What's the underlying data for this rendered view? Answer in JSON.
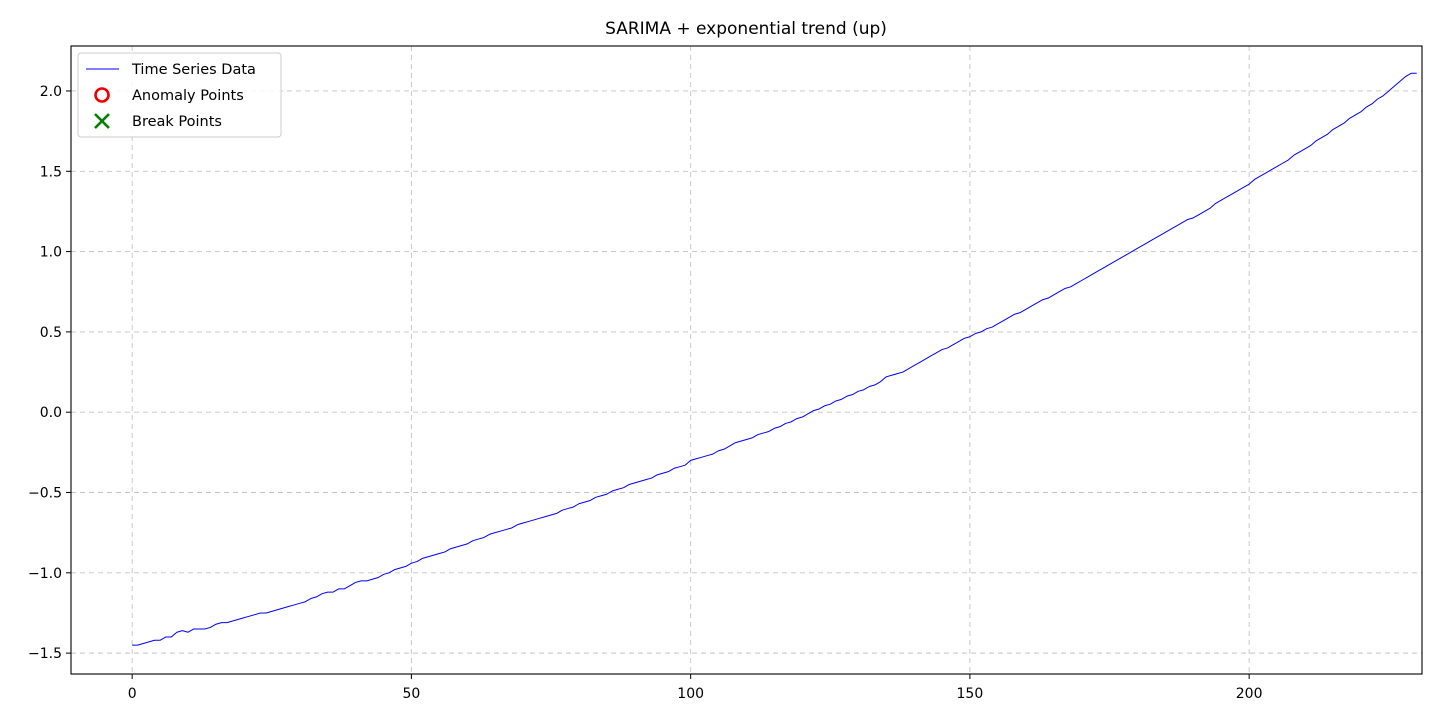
{
  "chart_data": {
    "type": "line",
    "title": "SARIMA + exponential trend (up)",
    "xlabel": "",
    "ylabel": "",
    "xlim": [
      -10.95,
      230.95
    ],
    "ylim": [
      -1.63,
      2.28
    ],
    "xticks": [
      0,
      50,
      100,
      150,
      200
    ],
    "xtick_labels": [
      "0",
      "50",
      "100",
      "150",
      "200"
    ],
    "yticks": [
      -1.5,
      -1.0,
      -0.5,
      0.0,
      0.5,
      1.0,
      1.5,
      2.0
    ],
    "ytick_labels": [
      "−1.5",
      "−1.0",
      "−0.5",
      "0.0",
      "0.5",
      "1.0",
      "1.5",
      "2.0"
    ],
    "grid": true,
    "legend_position": "top-left",
    "legend": [
      {
        "label": "Time Series Data",
        "marker": "line",
        "color": "#0000ff"
      },
      {
        "label": "Anomaly Points",
        "marker": "circle",
        "color": "#ee0000"
      },
      {
        "label": "Break Points",
        "marker": "x",
        "color": "#008000"
      }
    ],
    "series": [
      {
        "name": "Time Series Data",
        "color": "#0000ff",
        "x_start": 0,
        "x_step": 1,
        "values": [
          -1.45,
          -1.45,
          -1.44,
          -1.43,
          -1.42,
          -1.42,
          -1.4,
          -1.4,
          -1.37,
          -1.36,
          -1.37,
          -1.35,
          -1.35,
          -1.35,
          -1.34,
          -1.32,
          -1.31,
          -1.31,
          -1.3,
          -1.29,
          -1.28,
          -1.27,
          -1.26,
          -1.25,
          -1.25,
          -1.24,
          -1.23,
          -1.22,
          -1.21,
          -1.2,
          -1.19,
          -1.18,
          -1.16,
          -1.15,
          -1.13,
          -1.12,
          -1.12,
          -1.1,
          -1.1,
          -1.08,
          -1.06,
          -1.05,
          -1.05,
          -1.04,
          -1.03,
          -1.01,
          -1.0,
          -0.98,
          -0.97,
          -0.96,
          -0.94,
          -0.93,
          -0.91,
          -0.9,
          -0.89,
          -0.88,
          -0.87,
          -0.85,
          -0.84,
          -0.83,
          -0.82,
          -0.8,
          -0.79,
          -0.78,
          -0.76,
          -0.75,
          -0.74,
          -0.73,
          -0.72,
          -0.7,
          -0.69,
          -0.68,
          -0.67,
          -0.66,
          -0.65,
          -0.64,
          -0.63,
          -0.61,
          -0.6,
          -0.59,
          -0.57,
          -0.56,
          -0.55,
          -0.53,
          -0.52,
          -0.51,
          -0.49,
          -0.48,
          -0.47,
          -0.45,
          -0.44,
          -0.43,
          -0.42,
          -0.41,
          -0.39,
          -0.38,
          -0.37,
          -0.35,
          -0.34,
          -0.33,
          -0.3,
          -0.29,
          -0.28,
          -0.27,
          -0.26,
          -0.24,
          -0.23,
          -0.21,
          -0.19,
          -0.18,
          -0.17,
          -0.16,
          -0.14,
          -0.13,
          -0.12,
          -0.1,
          -0.09,
          -0.07,
          -0.06,
          -0.04,
          -0.03,
          -0.01,
          0.01,
          0.02,
          0.04,
          0.05,
          0.07,
          0.08,
          0.1,
          0.11,
          0.13,
          0.14,
          0.16,
          0.17,
          0.19,
          0.22,
          0.23,
          0.24,
          0.25,
          0.27,
          0.29,
          0.31,
          0.33,
          0.35,
          0.37,
          0.39,
          0.4,
          0.42,
          0.44,
          0.46,
          0.47,
          0.49,
          0.5,
          0.52,
          0.53,
          0.55,
          0.57,
          0.59,
          0.61,
          0.62,
          0.64,
          0.66,
          0.68,
          0.7,
          0.71,
          0.73,
          0.75,
          0.77,
          0.78,
          0.8,
          0.82,
          0.84,
          0.86,
          0.88,
          0.9,
          0.92,
          0.94,
          0.96,
          0.98,
          1.0,
          1.02,
          1.04,
          1.06,
          1.08,
          1.1,
          1.12,
          1.14,
          1.16,
          1.18,
          1.2,
          1.21,
          1.23,
          1.25,
          1.27,
          1.3,
          1.32,
          1.34,
          1.36,
          1.38,
          1.4,
          1.42,
          1.45,
          1.47,
          1.49,
          1.51,
          1.53,
          1.55,
          1.57,
          1.6,
          1.62,
          1.64,
          1.66,
          1.69,
          1.71,
          1.73,
          1.76,
          1.78,
          1.8,
          1.83,
          1.85,
          1.87,
          1.9,
          1.92,
          1.95,
          1.97,
          2.0,
          2.03,
          2.06,
          2.09,
          2.11,
          2.11
        ]
      }
    ],
    "anomaly_points": [],
    "break_points": []
  }
}
